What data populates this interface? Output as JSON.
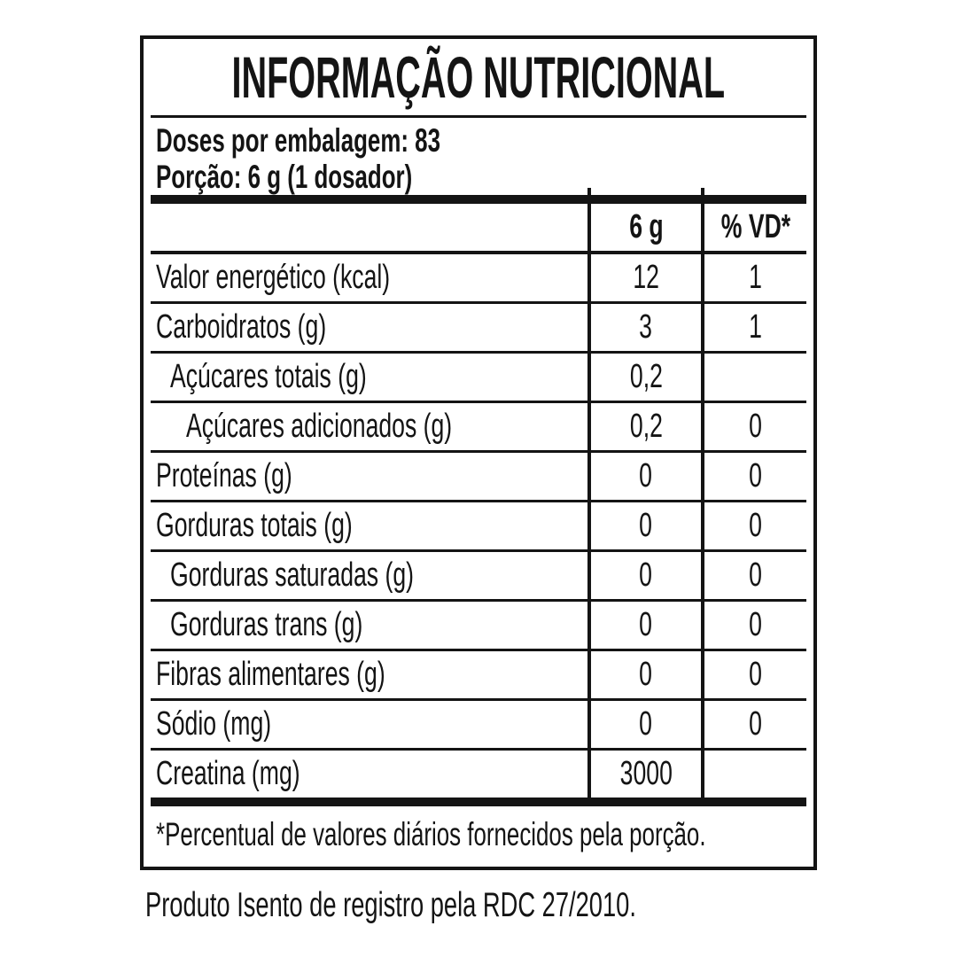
{
  "panel": {
    "title": "INFORMAÇÃO NUTRICIONAL",
    "servings_line": "Doses por embalagem: 83",
    "portion_line": "Porção: 6 g (1 dosador)",
    "footnote": "*Percentual de valores diários fornecidos pela porção.",
    "registration_note": "Produto Isento de registro pela RDC 27/2010."
  },
  "table": {
    "col_amount": "6 g",
    "col_dv": "% VD*",
    "rows": [
      {
        "label": "Valor energético (kcal)",
        "amount": "12",
        "dv": "1"
      },
      {
        "label": "Carboidratos (g)",
        "amount": "3",
        "dv": "1"
      },
      {
        "label": "Açúcares totais (g)",
        "amount": "0,2",
        "dv": ""
      },
      {
        "label": "Açúcares adicionados (g)",
        "amount": "0,2",
        "dv": "0"
      },
      {
        "label": "Proteínas (g)",
        "amount": "0",
        "dv": "0"
      },
      {
        "label": "Gorduras totais (g)",
        "amount": "0",
        "dv": "0"
      },
      {
        "label": "Gorduras saturadas (g)",
        "amount": "0",
        "dv": "0"
      },
      {
        "label": "Gorduras trans (g)",
        "amount": "0",
        "dv": "0"
      },
      {
        "label": "Fibras alimentares (g)",
        "amount": "0",
        "dv": "0"
      },
      {
        "label": "Sódio (mg)",
        "amount": "0",
        "dv": "0"
      },
      {
        "label": "Creatina (mg)",
        "amount": "3000",
        "dv": ""
      }
    ]
  }
}
